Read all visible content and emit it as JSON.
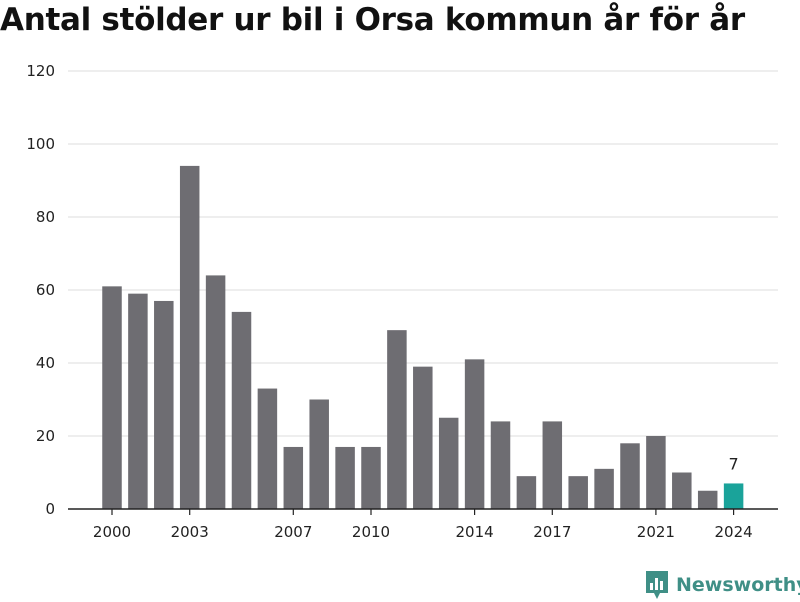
{
  "title": "Antal stölder ur bil i Orsa kommun år för år",
  "brand": {
    "name": "Newsworthy",
    "logo_icon": "bar-chart-pin-icon",
    "color": "#3f8f86"
  },
  "chart_data": {
    "type": "bar",
    "x": [
      2000,
      2001,
      2002,
      2003,
      2004,
      2005,
      2006,
      2007,
      2008,
      2009,
      2010,
      2011,
      2012,
      2013,
      2014,
      2015,
      2016,
      2017,
      2018,
      2019,
      2020,
      2021,
      2022,
      2023,
      2024
    ],
    "values": [
      61,
      59,
      57,
      94,
      64,
      54,
      33,
      17,
      30,
      17,
      17,
      49,
      39,
      25,
      41,
      24,
      9,
      24,
      9,
      11,
      18,
      20,
      10,
      5,
      7
    ],
    "x_tick_labels": [
      "2000",
      "2003",
      "2007",
      "2010",
      "2014",
      "2017",
      "2021",
      "2024"
    ],
    "y_ticks": [
      0,
      20,
      40,
      60,
      80,
      100,
      120
    ],
    "ylim": [
      0,
      120
    ],
    "highlight": {
      "year": 2024,
      "label": "7",
      "color": "#1aa39a"
    },
    "bar_color": "#6e6d72",
    "grid": true
  }
}
